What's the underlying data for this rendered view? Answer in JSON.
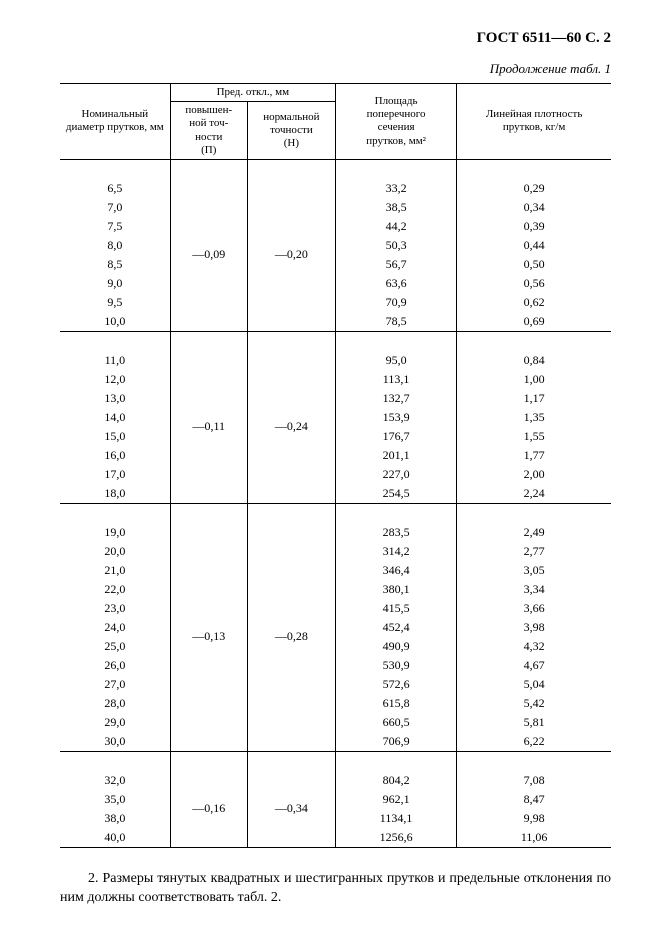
{
  "doc_code": "ГОСТ 6511—60 С. 2",
  "caption": "Продолжение табл. 1",
  "headers": {
    "col1": "Номинальный диаметр прутков, мм",
    "tol_group": "Пред. откл., мм",
    "col2a": "повышен-\nной точ-\nности\n(П)",
    "col2b": "нормальной\nточности\n(Н)",
    "col3": "Площадь\nпоперечного\nсечения\nпрутков, мм²",
    "col4": "Линейная плотность\nпрутков, кг/м"
  },
  "groups": [
    {
      "p": "—0,09",
      "n": "—0,20",
      "rows": [
        {
          "d": "6,5",
          "a": "33,2",
          "m": "0,29"
        },
        {
          "d": "7,0",
          "a": "38,5",
          "m": "0,34"
        },
        {
          "d": "7,5",
          "a": "44,2",
          "m": "0,39"
        },
        {
          "d": "8,0",
          "a": "50,3",
          "m": "0,44"
        },
        {
          "d": "8,5",
          "a": "56,7",
          "m": "0,50"
        },
        {
          "d": "9,0",
          "a": "63,6",
          "m": "0,56"
        },
        {
          "d": "9,5",
          "a": "70,9",
          "m": "0,62"
        },
        {
          "d": "10,0",
          "a": "78,5",
          "m": "0,69"
        }
      ]
    },
    {
      "p": "—0,11",
      "n": "—0,24",
      "rows": [
        {
          "d": "11,0",
          "a": "95,0",
          "m": "0,84"
        },
        {
          "d": "12,0",
          "a": "113,1",
          "m": "1,00"
        },
        {
          "d": "13,0",
          "a": "132,7",
          "m": "1,17"
        },
        {
          "d": "14,0",
          "a": "153,9",
          "m": "1,35"
        },
        {
          "d": "15,0",
          "a": "176,7",
          "m": "1,55"
        },
        {
          "d": "16,0",
          "a": "201,1",
          "m": "1,77"
        },
        {
          "d": "17,0",
          "a": "227,0",
          "m": "2,00"
        },
        {
          "d": "18,0",
          "a": "254,5",
          "m": "2,24"
        }
      ]
    },
    {
      "p": "—0,13",
      "n": "—0,28",
      "rows": [
        {
          "d": "19,0",
          "a": "283,5",
          "m": "2,49"
        },
        {
          "d": "20,0",
          "a": "314,2",
          "m": "2,77"
        },
        {
          "d": "21,0",
          "a": "346,4",
          "m": "3,05"
        },
        {
          "d": "22,0",
          "a": "380,1",
          "m": "3,34"
        },
        {
          "d": "23,0",
          "a": "415,5",
          "m": "3,66"
        },
        {
          "d": "24,0",
          "a": "452,4",
          "m": "3,98"
        },
        {
          "d": "25,0",
          "a": "490,9",
          "m": "4,32"
        },
        {
          "d": "26,0",
          "a": "530,9",
          "m": "4,67"
        },
        {
          "d": "27,0",
          "a": "572,6",
          "m": "5,04"
        },
        {
          "d": "28,0",
          "a": "615,8",
          "m": "5,42"
        },
        {
          "d": "29,0",
          "a": "660,5",
          "m": "5,81"
        },
        {
          "d": "30,0",
          "a": "706,9",
          "m": "6,22"
        }
      ]
    },
    {
      "p": "—0,16",
      "n": "—0,34",
      "rows": [
        {
          "d": "32,0",
          "a": "804,2",
          "m": "7,08"
        },
        {
          "d": "35,0",
          "a": "962,1",
          "m": "8,47"
        },
        {
          "d": "38,0",
          "a": "1134,1",
          "m": "9,98"
        },
        {
          "d": "40,0",
          "a": "1256,6",
          "m": "11,06"
        }
      ]
    }
  ],
  "footer": "2. Размеры тянутых квадратных и шестигранных прутков и предельные отклонения по ним должны соответствовать табл. 2."
}
